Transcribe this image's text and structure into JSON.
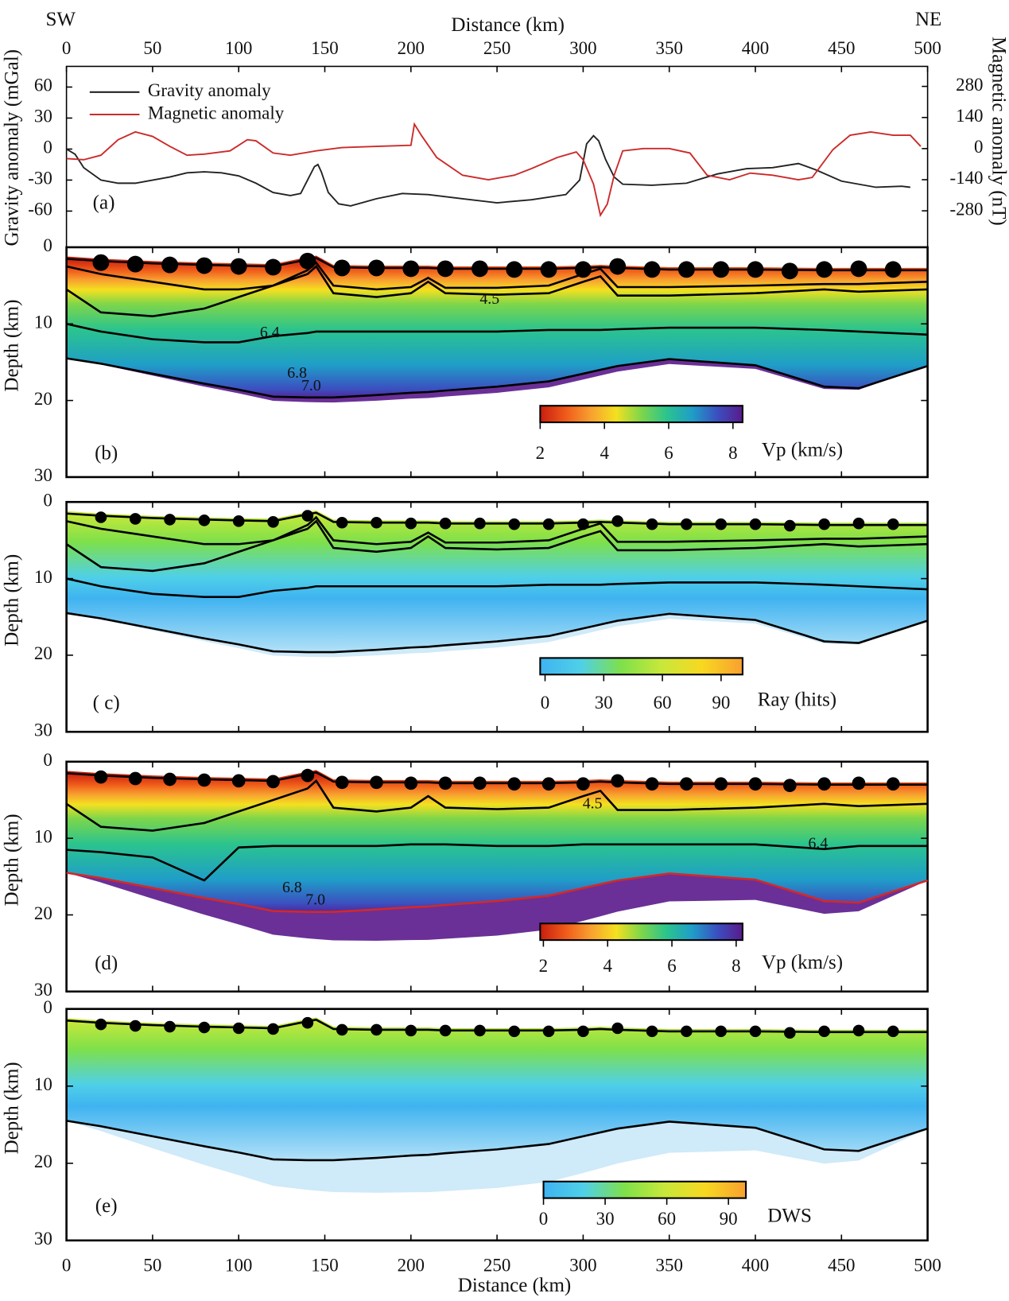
{
  "chart_data": [
    {
      "type": "line",
      "label": "(a)",
      "dir_left": "SW",
      "dir_right": "NE",
      "xlabel": "Distance (km)",
      "xlim": [
        0,
        500
      ],
      "xticks": [
        0,
        50,
        100,
        150,
        200,
        250,
        300,
        350,
        400,
        450,
        500
      ],
      "ylabel": "Gravity anomaly (mGal)",
      "ylim": [
        -95,
        80
      ],
      "yticks": [
        -60,
        -30,
        0,
        30,
        60
      ],
      "y2label": "Magnetic anomaly (nT)",
      "y2lim": [
        -444,
        370
      ],
      "y2ticks": [
        -280,
        -140,
        0,
        140,
        280
      ],
      "series": [
        {
          "name": "Gravity anomaly",
          "color": "#222222",
          "x": [
            0,
            5,
            10,
            20,
            30,
            40,
            60,
            70,
            80,
            90,
            100,
            110,
            120,
            130,
            136,
            140,
            144,
            146,
            148,
            152,
            158,
            165,
            180,
            195,
            210,
            230,
            250,
            270,
            290,
            298,
            302,
            306,
            309,
            313,
            318,
            323,
            340,
            360,
            378,
            395,
            410,
            425,
            435,
            450,
            470,
            485,
            490
          ],
          "values": [
            0,
            -5,
            -18,
            -30,
            -33,
            -33,
            -27,
            -23,
            -22,
            -23,
            -26,
            -33,
            -42,
            -45,
            -43,
            -30,
            -17,
            -15,
            -22,
            -42,
            -53,
            -55,
            -48,
            -43,
            -44,
            -48,
            -52,
            -49,
            -44,
            -30,
            5,
            13,
            8,
            -10,
            -27,
            -34,
            -35,
            -33,
            -24,
            -19,
            -18,
            -14,
            -20,
            -31,
            -37,
            -36,
            -37
          ]
        },
        {
          "name": "Magnetic anomaly",
          "color": "#cc2a2a",
          "axis": "y2",
          "x": [
            0,
            10,
            20,
            30,
            40,
            50,
            60,
            70,
            80,
            95,
            105,
            110,
            120,
            130,
            145,
            160,
            180,
            200,
            202,
            206,
            215,
            230,
            245,
            260,
            270,
            285,
            296,
            300,
            306,
            310,
            314,
            318,
            323,
            335,
            350,
            362,
            372,
            385,
            397,
            410,
            425,
            433,
            445,
            455,
            467,
            480,
            490,
            496
          ],
          "values": [
            -45,
            -50,
            -30,
            40,
            75,
            55,
            10,
            -30,
            -25,
            -10,
            40,
            35,
            -20,
            -30,
            -10,
            5,
            10,
            15,
            110,
            60,
            -40,
            -120,
            -140,
            -120,
            -90,
            -40,
            -15,
            -50,
            -160,
            -300,
            -250,
            -120,
            -10,
            0,
            0,
            -20,
            -120,
            -140,
            -110,
            -120,
            -140,
            -130,
            -5,
            60,
            75,
            60,
            60,
            10
          ]
        }
      ]
    },
    {
      "type": "section",
      "field": "velocity",
      "label": "(b)",
      "ylabel": "Depth (km)",
      "ylim": [
        0,
        30
      ],
      "y_inverted": true,
      "yticks": [
        0,
        10,
        20,
        30
      ],
      "x": [
        0,
        20,
        50,
        80,
        100,
        120,
        140,
        145,
        155,
        180,
        200,
        210,
        220,
        250,
        280,
        300,
        310,
        320,
        350,
        400,
        440,
        460,
        500
      ],
      "interfaces": [
        {
          "color": "#000000",
          "values": [
            1.5,
            1.8,
            2.1,
            2.3,
            2.4,
            2.5,
            1.6,
            1.4,
            2.6,
            2.7,
            2.7,
            2.7,
            2.8,
            2.8,
            2.8,
            2.7,
            2.6,
            2.7,
            2.9,
            2.9,
            3.0,
            3.0,
            3.0
          ]
        },
        {
          "color": "#000000",
          "values": [
            2.5,
            3.5,
            4.5,
            5.5,
            5.5,
            5.0,
            3.0,
            2.0,
            5.0,
            5.5,
            5.2,
            4.0,
            5.3,
            5.3,
            5.0,
            3.5,
            2.8,
            5.2,
            5.2,
            5.0,
            4.8,
            4.8,
            4.5
          ]
        },
        {
          "color": "#000000",
          "values": [
            5.5,
            8.5,
            9.0,
            8.0,
            6.5,
            5.0,
            3.5,
            2.5,
            6.0,
            6.5,
            6.0,
            4.5,
            6.0,
            6.2,
            6.0,
            4.5,
            3.8,
            6.3,
            6.3,
            6.0,
            5.5,
            5.8,
            5.5
          ]
        },
        {
          "color": "#000000",
          "values": [
            10.0,
            11.0,
            12.0,
            12.4,
            12.4,
            11.6,
            11.2,
            11.0,
            11.0,
            11.0,
            11.0,
            11.0,
            11.0,
            11.0,
            10.8,
            10.8,
            10.8,
            10.7,
            10.5,
            10.5,
            10.8,
            11.0,
            11.4
          ]
        },
        {
          "color": "#000000",
          "values": [
            14.5,
            15.2,
            16.5,
            17.8,
            18.6,
            19.5,
            19.6,
            19.6,
            19.6,
            19.3,
            19.0,
            18.9,
            18.7,
            18.2,
            17.5,
            16.5,
            16.0,
            15.5,
            14.6,
            15.4,
            18.2,
            18.4,
            15.5
          ]
        }
      ],
      "stations": {
        "x": [
          20,
          40,
          60,
          80,
          100,
          120,
          140,
          160,
          180,
          200,
          220,
          240,
          260,
          280,
          300,
          320,
          340,
          360,
          380,
          400,
          420,
          440,
          460,
          480
        ],
        "depth": [
          2.0,
          2.2,
          2.3,
          2.4,
          2.5,
          2.6,
          1.8,
          2.7,
          2.7,
          2.8,
          2.8,
          2.8,
          2.9,
          2.9,
          2.9,
          2.5,
          2.9,
          2.9,
          2.9,
          2.9,
          3.1,
          2.9,
          2.8,
          2.9
        ]
      },
      "contour_labels": [
        "4.5",
        "6.4",
        "6.8",
        "7.0"
      ],
      "colorbar": {
        "label": "Vp (km/s)",
        "lim": [
          2,
          8.3
        ],
        "ticks": [
          2,
          4,
          6,
          8
        ],
        "colors": [
          "#c81e0f",
          "#ef5a1a",
          "#f8a030",
          "#f4e020",
          "#7ed64a",
          "#2bc48e",
          "#1f9ec8",
          "#3b4fc0",
          "#5a1a8c"
        ]
      }
    },
    {
      "type": "section",
      "field": "rays",
      "label": "( c)",
      "ylabel": "Depth (km)",
      "ylim": [
        0,
        30
      ],
      "y_inverted": true,
      "yticks": [
        0,
        10,
        20,
        30
      ],
      "x": [
        0,
        20,
        50,
        80,
        100,
        120,
        140,
        145,
        155,
        180,
        200,
        210,
        220,
        250,
        280,
        300,
        310,
        320,
        350,
        400,
        440,
        460,
        500
      ],
      "interfaces": [
        {
          "color": "#000000",
          "values": [
            1.5,
            1.8,
            2.1,
            2.3,
            2.4,
            2.5,
            1.6,
            1.4,
            2.6,
            2.7,
            2.7,
            2.7,
            2.8,
            2.8,
            2.8,
            2.7,
            2.6,
            2.7,
            2.9,
            2.9,
            3.0,
            3.0,
            3.0
          ]
        },
        {
          "color": "#000000",
          "values": [
            2.5,
            3.5,
            4.5,
            5.5,
            5.5,
            5.0,
            3.0,
            2.0,
            5.0,
            5.5,
            5.2,
            4.0,
            5.3,
            5.3,
            5.0,
            3.5,
            2.8,
            5.2,
            5.2,
            5.0,
            4.8,
            4.8,
            4.5
          ]
        },
        {
          "color": "#000000",
          "values": [
            5.5,
            8.5,
            9.0,
            8.0,
            6.5,
            5.0,
            3.5,
            2.5,
            6.0,
            6.5,
            6.0,
            4.5,
            6.0,
            6.2,
            6.0,
            4.5,
            3.8,
            6.3,
            6.3,
            6.0,
            5.5,
            5.8,
            5.5
          ]
        },
        {
          "color": "#000000",
          "values": [
            10.0,
            11.0,
            12.0,
            12.4,
            12.4,
            11.6,
            11.2,
            11.0,
            11.0,
            11.0,
            11.0,
            11.0,
            11.0,
            11.0,
            10.8,
            10.8,
            10.8,
            10.7,
            10.5,
            10.5,
            10.8,
            11.0,
            11.4
          ]
        },
        {
          "color": "#000000",
          "values": [
            14.5,
            15.2,
            16.5,
            17.8,
            18.6,
            19.5,
            19.6,
            19.6,
            19.6,
            19.3,
            19.0,
            18.9,
            18.7,
            18.2,
            17.5,
            16.5,
            16.0,
            15.5,
            14.6,
            15.4,
            18.2,
            18.4,
            15.5
          ]
        }
      ],
      "stations": {
        "x": [
          20,
          40,
          60,
          80,
          100,
          120,
          140,
          160,
          180,
          200,
          220,
          240,
          260,
          280,
          300,
          320,
          340,
          360,
          380,
          400,
          420,
          440,
          460,
          480
        ],
        "depth": [
          2.0,
          2.2,
          2.3,
          2.4,
          2.5,
          2.6,
          1.8,
          2.7,
          2.7,
          2.8,
          2.8,
          2.8,
          2.9,
          2.9,
          2.9,
          2.5,
          2.9,
          2.9,
          2.9,
          2.9,
          3.1,
          2.9,
          2.8,
          2.9
        ]
      },
      "colorbar": {
        "label": "Ray (hits)",
        "lim": [
          -2.5,
          101
        ],
        "ticks": [
          0,
          30,
          60,
          90
        ],
        "colors": [
          "#3fb3f0",
          "#4fd0e8",
          "#7ee04a",
          "#c8e83a",
          "#f8d820",
          "#f8a030"
        ]
      }
    },
    {
      "type": "section",
      "field": "velocity",
      "label": "(d)",
      "ylabel": "Depth (km)",
      "ylim": [
        0,
        30
      ],
      "y_inverted": true,
      "yticks": [
        0,
        10,
        20,
        30
      ],
      "x": [
        0,
        20,
        50,
        80,
        100,
        120,
        140,
        145,
        155,
        180,
        200,
        210,
        220,
        250,
        280,
        300,
        310,
        320,
        350,
        400,
        440,
        460,
        500
      ],
      "interfaces": [
        {
          "color": "#000000",
          "values": [
            1.5,
            1.8,
            2.1,
            2.3,
            2.4,
            2.5,
            1.6,
            1.4,
            2.6,
            2.7,
            2.7,
            2.7,
            2.8,
            2.8,
            2.8,
            2.7,
            2.6,
            2.7,
            2.9,
            2.9,
            3.0,
            3.0,
            3.0
          ]
        },
        {
          "color": "#000000",
          "values": [
            5.5,
            8.5,
            9.0,
            8.0,
            6.5,
            5.0,
            3.5,
            2.5,
            6.0,
            6.5,
            6.0,
            4.5,
            6.0,
            6.2,
            6.0,
            4.5,
            3.8,
            6.3,
            6.3,
            6.0,
            5.5,
            5.8,
            5.5
          ]
        },
        {
          "color": "#000000",
          "values": [
            11.5,
            11.8,
            12.5,
            15.5,
            11.2,
            11.0,
            11.0,
            11.0,
            11.0,
            11.0,
            10.8,
            10.8,
            10.8,
            11.0,
            11.0,
            10.8,
            10.8,
            10.8,
            10.8,
            10.8,
            11.4,
            11.0,
            11.0
          ]
        },
        {
          "color": "#d62728",
          "values": [
            14.5,
            15.2,
            16.5,
            17.8,
            18.6,
            19.5,
            19.6,
            19.6,
            19.6,
            19.3,
            19.0,
            18.9,
            18.7,
            18.2,
            17.5,
            16.5,
            16.0,
            15.5,
            14.6,
            15.4,
            18.2,
            18.4,
            15.5
          ]
        }
      ],
      "stations": {
        "x": [
          20,
          40,
          60,
          80,
          100,
          120,
          140,
          160,
          180,
          200,
          220,
          240,
          260,
          280,
          300,
          320,
          340,
          360,
          380,
          400,
          420,
          440,
          460,
          480
        ],
        "depth": [
          2.0,
          2.2,
          2.3,
          2.4,
          2.5,
          2.6,
          1.8,
          2.7,
          2.7,
          2.8,
          2.8,
          2.8,
          2.9,
          2.9,
          2.9,
          2.5,
          2.9,
          2.9,
          2.9,
          2.9,
          3.1,
          2.9,
          2.8,
          2.9
        ]
      },
      "contour_labels": [
        "4.5",
        "6.4",
        "6.8",
        "7.0"
      ],
      "colorbar": {
        "label": "Vp (km/s)",
        "lim": [
          1.9,
          8.2
        ],
        "ticks": [
          2,
          4,
          6,
          8
        ],
        "colors": [
          "#c81e0f",
          "#ef5a1a",
          "#f8a030",
          "#f4e020",
          "#7ed64a",
          "#2bc48e",
          "#1f9ec8",
          "#3b4fc0",
          "#5a1a8c"
        ]
      }
    },
    {
      "type": "section",
      "field": "rays",
      "label": "(e)",
      "ylabel": "Depth (km)",
      "ylim": [
        0,
        30
      ],
      "y_inverted": true,
      "yticks": [
        0,
        10,
        20,
        30
      ],
      "xlabel": "Distance (km)",
      "xticks": [
        0,
        50,
        100,
        150,
        200,
        250,
        300,
        350,
        400,
        450,
        500
      ],
      "x": [
        0,
        20,
        50,
        80,
        100,
        120,
        140,
        145,
        155,
        180,
        200,
        210,
        220,
        250,
        280,
        300,
        310,
        320,
        350,
        400,
        440,
        460,
        500
      ],
      "interfaces": [
        {
          "color": "#000000",
          "values": [
            1.5,
            1.8,
            2.1,
            2.3,
            2.4,
            2.5,
            1.6,
            1.4,
            2.6,
            2.7,
            2.7,
            2.7,
            2.8,
            2.8,
            2.8,
            2.7,
            2.6,
            2.7,
            2.9,
            2.9,
            3.0,
            3.0,
            3.0
          ]
        },
        {
          "color": "#000000",
          "values": [
            14.5,
            15.2,
            16.5,
            17.8,
            18.6,
            19.5,
            19.6,
            19.6,
            19.6,
            19.3,
            19.0,
            18.9,
            18.7,
            18.2,
            17.5,
            16.5,
            16.0,
            15.5,
            14.6,
            15.4,
            18.2,
            18.4,
            15.5
          ]
        }
      ],
      "stations": {
        "x": [
          20,
          40,
          60,
          80,
          100,
          120,
          140,
          160,
          180,
          200,
          220,
          240,
          260,
          280,
          300,
          320,
          340,
          360,
          380,
          400,
          420,
          440,
          460,
          480
        ],
        "depth": [
          2.0,
          2.2,
          2.3,
          2.4,
          2.5,
          2.6,
          1.8,
          2.7,
          2.7,
          2.8,
          2.8,
          2.8,
          2.9,
          2.9,
          2.9,
          2.5,
          2.9,
          2.9,
          2.9,
          2.9,
          3.1,
          2.9,
          2.8,
          2.9
        ]
      },
      "colorbar": {
        "label": "DWS",
        "lim": [
          0,
          98.5
        ],
        "ticks": [
          0,
          30,
          60,
          90
        ],
        "colors": [
          "#3fb3f0",
          "#4fd0e8",
          "#7ee04a",
          "#c8e83a",
          "#f8d820",
          "#f8a030"
        ]
      }
    }
  ]
}
